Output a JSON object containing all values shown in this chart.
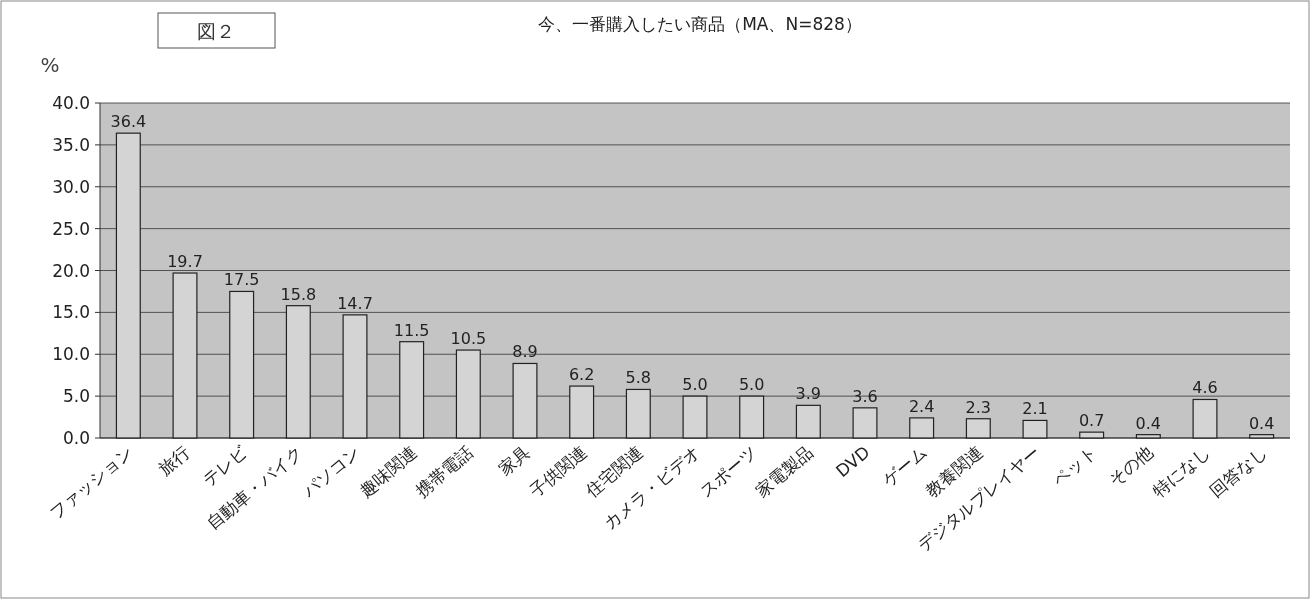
{
  "chart_data": {
    "type": "bar",
    "title": "今、一番購入したい商品（MA、N=828）",
    "ylabel": "%",
    "annotations": [
      "図２"
    ],
    "categories": [
      "ファッション",
      "旅行",
      "テレビ",
      "自動車・バイク",
      "パソコン",
      "趣味関連",
      "携帯電話",
      "家具",
      "子供関連",
      "住宅関連",
      "カメラ・ビデオ",
      "スポーツ",
      "家電製品",
      "DVD",
      "ゲーム",
      "教養関連",
      "デジタルプレイヤー",
      "ペット",
      "その他",
      "特になし",
      "回答なし"
    ],
    "values": [
      36.4,
      19.7,
      17.5,
      15.8,
      14.7,
      11.5,
      10.5,
      8.9,
      6.2,
      5.8,
      5.0,
      5.0,
      3.9,
      3.6,
      2.4,
      2.3,
      2.1,
      0.7,
      0.4,
      4.6,
      0.4
    ],
    "value_labels": [
      "36.4",
      "19.7",
      "17.5",
      "15.8",
      "14.7",
      "11.5",
      "10.5",
      "8.9",
      "6.2",
      "5.8",
      "5.0",
      "5.0",
      "3.9",
      "3.6",
      "2.4",
      "2.3",
      "2.1",
      "0.7",
      "0.4",
      "4.6",
      "0.4"
    ],
    "color": "#d4d4d4",
    "ylim": [
      0,
      40
    ],
    "yticks": [
      {
        "value": 0,
        "label": "0.0"
      },
      {
        "value": 5,
        "label": "5.0"
      },
      {
        "value": 10,
        "label": "10.0"
      },
      {
        "value": 15,
        "label": "15.0"
      },
      {
        "value": 20,
        "label": "20.0"
      },
      {
        "value": 25,
        "label": "25.0"
      },
      {
        "value": 30,
        "label": "30.0"
      },
      {
        "value": 35,
        "label": "35.0"
      },
      {
        "value": 40,
        "label": "40.0"
      }
    ],
    "grid": "y"
  }
}
